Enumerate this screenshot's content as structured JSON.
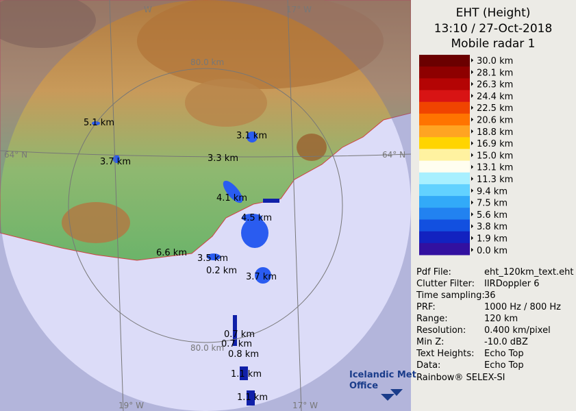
{
  "map": {
    "echo_labels": [
      "5.1 km",
      "3.1 km",
      "3.7 km",
      "3.3 km",
      "4.1 km",
      "4.5 km",
      "6.6 km",
      "3.5 km",
      "0.2 km",
      "3.7 km",
      "0.7 km",
      "0.7 km",
      "0.8 km",
      "1.1 km",
      "1.1 km"
    ],
    "grid_labels": [
      "80.0 km",
      "80.0 km",
      "64° N",
      "64° N",
      "19° W",
      "17° W",
      "W",
      "17° W"
    ],
    "logo": [
      "Icelandic Met",
      "Office"
    ]
  },
  "panel": {
    "title": [
      "EHT (Height)",
      "13:10 / 27-Oct-2018",
      "Mobile radar 1"
    ],
    "scale": [
      {
        "label": "30.0 km",
        "color": "#6b0000"
      },
      {
        "label": "28.1 km",
        "color": "#8e0000"
      },
      {
        "label": "26.3 km",
        "color": "#b40404"
      },
      {
        "label": "24.4 km",
        "color": "#d81414"
      },
      {
        "label": "22.5 km",
        "color": "#f04400"
      },
      {
        "label": "20.6 km",
        "color": "#ff7400"
      },
      {
        "label": "18.8 km",
        "color": "#ffa422"
      },
      {
        "label": "16.9 km",
        "color": "#ffd400"
      },
      {
        "label": "15.0 km",
        "color": "#fff2a0"
      },
      {
        "label": "13.1 km",
        "color": "#fffef0"
      },
      {
        "label": "11.3 km",
        "color": "#a8f0ff"
      },
      {
        "label": "9.4 km",
        "color": "#62d2ff"
      },
      {
        "label": "7.5 km",
        "color": "#32aaf8"
      },
      {
        "label": "5.6 km",
        "color": "#2282f0"
      },
      {
        "label": "3.8 km",
        "color": "#1250e0"
      },
      {
        "label": "1.9 km",
        "color": "#1222c0"
      },
      {
        "label": "0.0 km",
        "color": "#3210a0"
      }
    ],
    "info": [
      [
        "Pdf File:",
        "eht_120km_text.eht"
      ],
      [
        "Clutter Filter:",
        "IIRDoppler 6"
      ],
      [
        "Time sampling:",
        "36"
      ],
      [
        "PRF:",
        "1000 Hz / 800 Hz"
      ],
      [
        "Range:",
        "120 km"
      ],
      [
        "Resolution:",
        "0.400 km/pixel"
      ],
      [
        "Min Z:",
        "-10.0 dBZ"
      ],
      [
        "Text Heights:",
        "Echo Top"
      ],
      [
        "Data:",
        "Echo Top"
      ]
    ],
    "footer": "Rainbow® SELEX-SI"
  }
}
